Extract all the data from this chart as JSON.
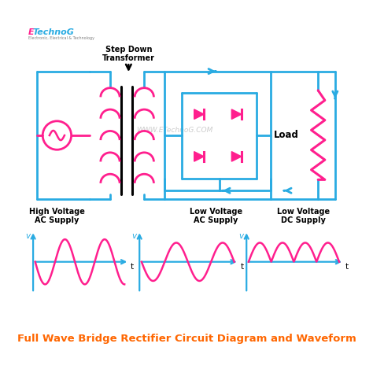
{
  "title": "Full Wave Bridge Rectifier Circuit Diagram and Waveform",
  "title_color": "#FF6600",
  "title_fontsize": 9.5,
  "bg_color": "#FFFFFF",
  "cc": "#29ABE2",
  "pk": "#FF1F8E",
  "bk": "#000000",
  "watermark": "WWW.ETechnoG.COM",
  "label1": "High Voltage\nAC Supply",
  "label2": "Low Voltage\nAC Supply",
  "label3": "Low Voltage\nDC Supply",
  "label_transformer": "Step Down\nTransformer",
  "lw_circuit": 2.0
}
